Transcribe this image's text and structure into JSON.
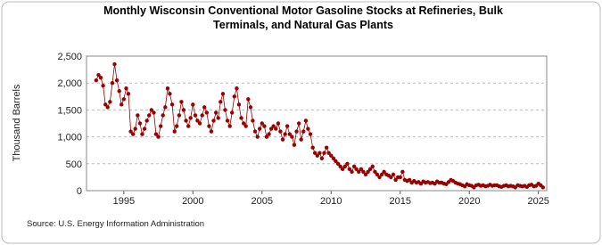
{
  "chart_data": {
    "type": "scatter",
    "title": "Monthly Wisconsin Conventional Motor Gasoline Stocks at Refineries, Bulk Terminals, and Natural Gas Plants",
    "y_label": "Thousand Barrels",
    "source": "Source: U.S. Energy Information Administration",
    "xlim": [
      1992.3,
      2025.6
    ],
    "xticks": [
      1995,
      2000,
      2005,
      2010,
      2015,
      2020,
      2025
    ],
    "ylim": [
      0,
      2500
    ],
    "yticks": [
      0,
      500,
      {
        "value": 1000,
        "label": "1,000"
      },
      {
        "value": 1500,
        "label": "1,500"
      },
      {
        "value": 2000,
        "label": "2,000"
      },
      {
        "value": 2500,
        "label": "2,500"
      }
    ],
    "grid": true,
    "series": [
      {
        "color": "#990000",
        "x": [
          1993,
          1993.17,
          1993.33,
          1993.5,
          1993.67,
          1993.83,
          1994,
          1994.17,
          1994.33,
          1994.5,
          1994.67,
          1994.83,
          1995,
          1995.17,
          1995.33,
          1995.5,
          1995.67,
          1995.83,
          1996,
          1996.17,
          1996.33,
          1996.5,
          1996.67,
          1996.83,
          1997,
          1997.17,
          1997.33,
          1997.5,
          1997.67,
          1997.83,
          1998,
          1998.17,
          1998.33,
          1998.5,
          1998.67,
          1998.83,
          1999,
          1999.17,
          1999.33,
          1999.5,
          1999.67,
          1999.83,
          2000,
          2000.17,
          2000.33,
          2000.5,
          2000.67,
          2000.83,
          2001,
          2001.17,
          2001.33,
          2001.5,
          2001.67,
          2001.83,
          2002,
          2002.17,
          2002.33,
          2002.5,
          2002.67,
          2002.83,
          2003,
          2003.17,
          2003.33,
          2003.5,
          2003.67,
          2003.83,
          2004,
          2004.17,
          2004.33,
          2004.5,
          2004.67,
          2004.83,
          2005,
          2005.17,
          2005.33,
          2005.5,
          2005.67,
          2005.83,
          2006,
          2006.17,
          2006.33,
          2006.5,
          2006.67,
          2006.83,
          2007,
          2007.17,
          2007.33,
          2007.5,
          2007.67,
          2007.83,
          2008,
          2008.17,
          2008.33,
          2008.5,
          2008.67,
          2008.83,
          2009,
          2009.17,
          2009.33,
          2009.5,
          2009.67,
          2009.83,
          2010,
          2010.17,
          2010.33,
          2010.5,
          2010.67,
          2010.83,
          2011,
          2011.17,
          2011.33,
          2011.5,
          2011.67,
          2011.83,
          2012,
          2012.17,
          2012.33,
          2012.5,
          2012.67,
          2012.83,
          2013,
          2013.17,
          2013.33,
          2013.5,
          2013.67,
          2013.83,
          2014,
          2014.17,
          2014.33,
          2014.5,
          2014.67,
          2014.83,
          2015,
          2015.17,
          2015.33,
          2015.5,
          2015.67,
          2015.83,
          2016,
          2016.17,
          2016.33,
          2016.5,
          2016.67,
          2016.83,
          2017,
          2017.17,
          2017.33,
          2017.5,
          2017.67,
          2017.83,
          2018,
          2018.17,
          2018.33,
          2018.5,
          2018.67,
          2018.83,
          2019,
          2019.17,
          2019.33,
          2019.5,
          2019.67,
          2019.83,
          2020,
          2020.17,
          2020.33,
          2020.5,
          2020.67,
          2020.83,
          2021,
          2021.17,
          2021.33,
          2021.5,
          2021.67,
          2021.83,
          2022,
          2022.17,
          2022.33,
          2022.5,
          2022.67,
          2022.83,
          2023,
          2023.17,
          2023.33,
          2023.5,
          2023.67,
          2023.83,
          2024,
          2024.17,
          2024.33,
          2024.5,
          2024.67,
          2024.83,
          2025,
          2025.17,
          2025.33
        ],
        "values": [
          2050,
          2150,
          2100,
          1950,
          1600,
          1550,
          1650,
          2000,
          2350,
          2050,
          1850,
          1600,
          1700,
          1900,
          1800,
          1100,
          1050,
          1150,
          1400,
          1250,
          1050,
          1150,
          1300,
          1400,
          1500,
          1450,
          1050,
          1000,
          1200,
          1400,
          1550,
          1900,
          1800,
          1600,
          1100,
          1200,
          1400,
          1650,
          1500,
          1300,
          1200,
          1350,
          1600,
          1400,
          1300,
          1250,
          1400,
          1550,
          1450,
          1200,
          1100,
          1300,
          1450,
          1350,
          1650,
          1800,
          1500,
          1300,
          1200,
          1450,
          1750,
          1900,
          1600,
          1350,
          1250,
          1200,
          1700,
          1550,
          1300,
          1100,
          1000,
          1150,
          1250,
          1200,
          1000,
          1050,
          1150,
          1200,
          1150,
          1250,
          1100,
          950,
          1050,
          1200,
          1050,
          1000,
          850,
          1100,
          1250,
          950,
          1100,
          1300,
          1150,
          1050,
          800,
          700,
          650,
          700,
          600,
          700,
          800,
          700,
          650,
          600,
          550,
          500,
          450,
          400,
          450,
          500,
          400,
          350,
          450,
          400,
          350,
          400,
          350,
          300,
          350,
          400,
          450,
          350,
          300,
          250,
          300,
          350,
          300,
          280,
          250,
          300,
          200,
          250,
          250,
          350,
          200,
          180,
          200,
          150,
          180,
          150,
          160,
          130,
          170,
          150,
          160,
          140,
          150,
          130,
          170,
          150,
          150,
          130,
          120,
          160,
          200,
          180,
          150,
          130,
          120,
          100,
          80,
          120,
          100,
          90,
          60,
          100,
          110,
          90,
          100,
          80,
          90,
          110,
          90,
          100,
          100,
          80,
          70,
          90,
          100,
          80,
          90,
          80,
          60,
          100,
          90,
          80,
          90,
          70,
          100,
          110,
          80,
          90,
          130,
          100,
          60
        ]
      }
    ]
  }
}
